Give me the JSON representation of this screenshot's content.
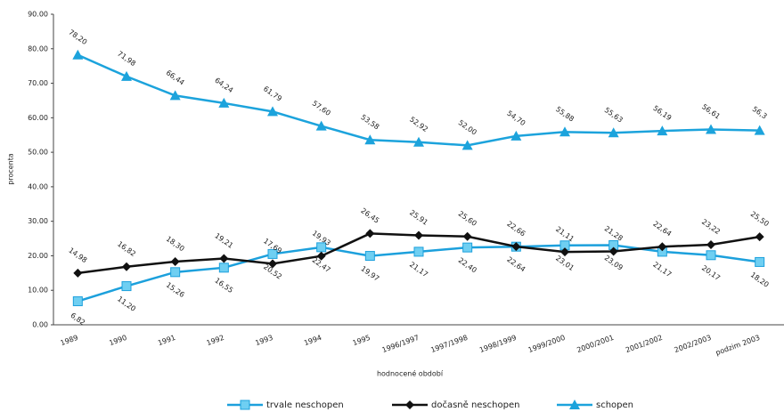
{
  "chart_data": {
    "type": "line",
    "categories": [
      "1989",
      "1990",
      "1991",
      "1992",
      "1993",
      "1994",
      "1995",
      "1996/1997",
      "1997/1998",
      "1998/1999",
      "1999/2000",
      "2000/2001",
      "2001/2002",
      "2002/2003",
      "podzim 2003"
    ],
    "series": [
      {
        "name": "trvale neschopen",
        "color": "#1ca0dc",
        "marker": "square",
        "marker_fill": "#6fcff2",
        "label_side": "below",
        "values": [
          6.82,
          11.2,
          15.26,
          16.55,
          20.52,
          22.47,
          19.97,
          21.17,
          22.4,
          22.64,
          23.01,
          23.09,
          21.17,
          20.17,
          18.2
        ],
        "value_labels": [
          "6,82",
          "11,20",
          "15,26",
          "16,55",
          "20,52",
          "22,47",
          "19,97",
          "21,17",
          "22,40",
          "22,64",
          "23,01",
          "23,09",
          "21,17",
          "20,17",
          "18,20"
        ]
      },
      {
        "name": "dočasně neschopen",
        "color": "#111111",
        "marker": "diamond",
        "marker_fill": "#111111",
        "label_side": "above",
        "values": [
          14.98,
          16.82,
          18.3,
          19.21,
          17.69,
          19.93,
          26.45,
          25.91,
          25.6,
          22.66,
          21.11,
          21.28,
          22.64,
          23.22,
          25.5
        ],
        "value_labels": [
          "14,98",
          "16,82",
          "18,30",
          "19,21",
          "17,69",
          "19,93",
          "26,45",
          "25,91",
          "25,60",
          "22,66",
          "21,11",
          "21,28",
          "22,64",
          "23,22",
          "25,50"
        ]
      },
      {
        "name": "schopen",
        "color": "#1ca3dc",
        "marker": "triangle",
        "marker_fill": "#1ca3dc",
        "label_side": "above",
        "values": [
          78.2,
          71.98,
          66.44,
          64.24,
          61.79,
          57.6,
          53.58,
          52.92,
          52.0,
          54.7,
          55.88,
          55.63,
          56.19,
          56.61,
          56.3
        ],
        "value_labels": [
          "78,20",
          "71,98",
          "66,44",
          "64,24",
          "61,79",
          "57,60",
          "53,58",
          "52,92",
          "52,00",
          "54,70",
          "55,88",
          "55,63",
          "56,19",
          "56,61",
          "56,3"
        ]
      }
    ],
    "ylabel": "procenta",
    "xlabel": "hodnocené období",
    "ylim": [
      0,
      90
    ],
    "yticks": [
      {
        "value": 0,
        "label": "0.00"
      },
      {
        "value": 10,
        "label": "10.00"
      },
      {
        "value": 20,
        "label": "20.00"
      },
      {
        "value": 30,
        "label": "30.00"
      },
      {
        "value": 40,
        "label": "40.00"
      },
      {
        "value": 50,
        "label": "50.00"
      },
      {
        "value": 60,
        "label": "60.00"
      },
      {
        "value": 70,
        "label": "70.00"
      },
      {
        "value": 80,
        "label": "80.00"
      },
      {
        "value": 90,
        "label": "90.00"
      }
    ],
    "grid": false,
    "legend": "bottom"
  }
}
